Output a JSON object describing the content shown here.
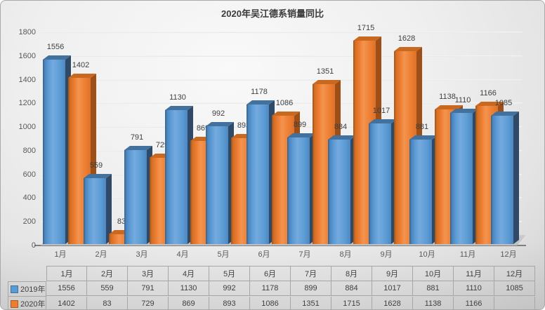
{
  "title": "2020年吴江德系销量同比",
  "chart_data": {
    "type": "bar",
    "style": "3d-clustered-column",
    "title": "2020年吴江德系销量同比",
    "categories": [
      "1月",
      "2月",
      "3月",
      "4月",
      "5月",
      "6月",
      "7月",
      "8月",
      "9月",
      "10月",
      "11月",
      "12月"
    ],
    "series": [
      {
        "name": "2019年",
        "color": "#5b9bd5",
        "values": [
          1556,
          559,
          791,
          1130,
          992,
          1178,
          899,
          884,
          1017,
          881,
          1110,
          1085
        ]
      },
      {
        "name": "2020年",
        "color": "#ed7d31",
        "values": [
          1402,
          83,
          729,
          869,
          893,
          1086,
          1351,
          1715,
          1628,
          1138,
          1166,
          null
        ]
      }
    ],
    "xlabel": "",
    "ylabel": "",
    "ylim": [
      0,
      1800
    ],
    "y_ticks": [
      0,
      200,
      400,
      600,
      800,
      1000,
      1200,
      1400,
      1600,
      1800
    ],
    "grid": true,
    "data_labels": true,
    "legend_position": "data-table-bottom"
  },
  "colors": {
    "series_2019": "#5b9bd5",
    "series_2020": "#ed7d31",
    "axis_text": "#595959",
    "label_text": "#3f3f3f",
    "table_border": "#a6a6a6"
  }
}
